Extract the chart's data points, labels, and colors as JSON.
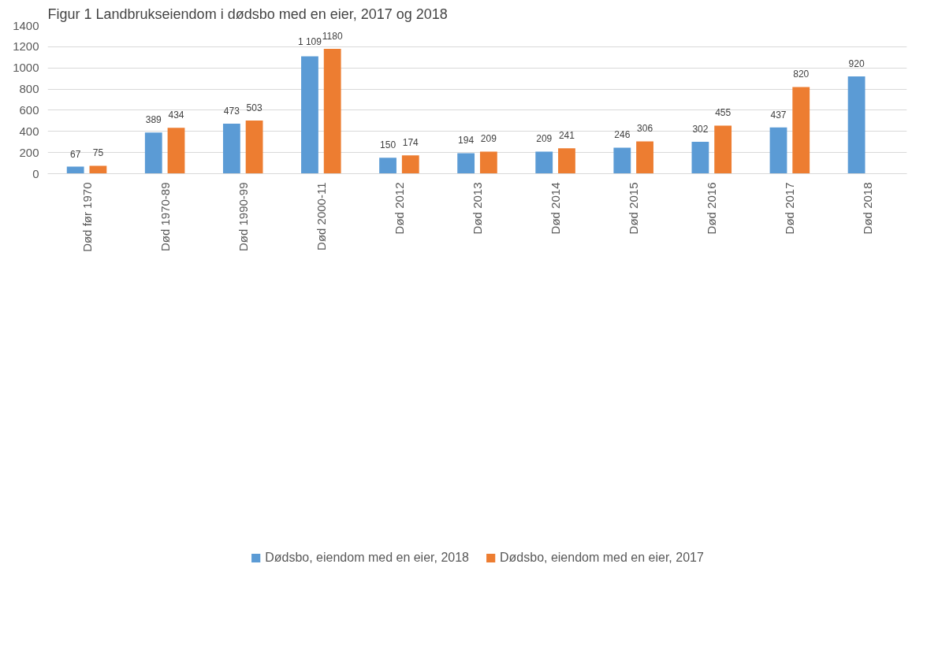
{
  "chart_data": {
    "type": "bar",
    "title": "Figur 1 Landbrukseiendom i dødsbo med en eier, 2017 og 2018",
    "categories": [
      "Død før 1970",
      "Død 1970-89",
      "Død 1990-99",
      "Død 2000-11",
      "Død 2012",
      "Død 2013",
      "Død 2014",
      "Død 2015",
      "Død 2016",
      "Død 2017",
      "Død 2018"
    ],
    "series": [
      {
        "name": "Dødsbo, eiendom med en eier, 2018",
        "color": "#5b9bd5",
        "values": [
          67,
          389,
          473,
          1109,
          150,
          194,
          209,
          246,
          302,
          437,
          920
        ],
        "value_labels": [
          "67",
          "389",
          "473",
          "1 109",
          "150",
          "194",
          "209",
          "246",
          "302",
          "437",
          "920"
        ]
      },
      {
        "name": "Dødsbo, eiendom med en eier, 2017",
        "color": "#ed7d31",
        "values": [
          75,
          434,
          503,
          1180,
          174,
          209,
          241,
          306,
          455,
          820,
          null
        ],
        "value_labels": [
          "75",
          "434",
          "503",
          "1180",
          "174",
          "209",
          "241",
          "306",
          "455",
          "820",
          null
        ]
      }
    ],
    "ylim": [
      0,
      1400
    ],
    "yticks": [
      0,
      200,
      400,
      600,
      800,
      1000,
      1200,
      1400
    ],
    "grid": "y",
    "legend": "bottom"
  }
}
